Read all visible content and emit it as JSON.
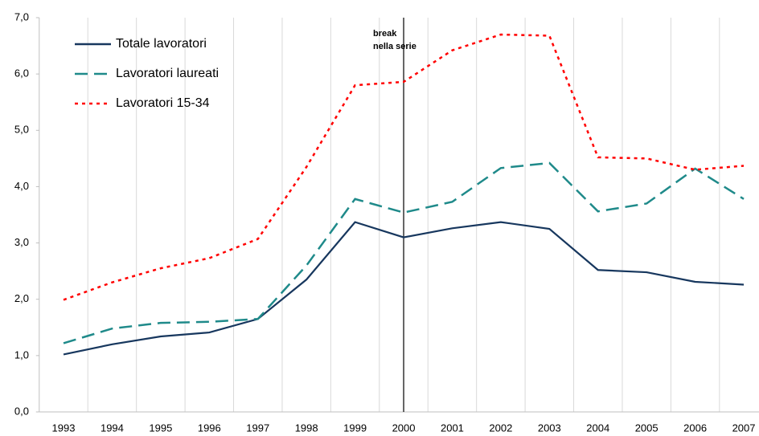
{
  "chart_data": {
    "type": "line",
    "categories": [
      "1993",
      "1994",
      "1995",
      "1996",
      "1997",
      "1998",
      "1999",
      "2000",
      "2001",
      "2002",
      "2003",
      "2004",
      "2005",
      "2006",
      "2007"
    ],
    "series": [
      {
        "name": "Totale lavoratori",
        "color": "#17375e",
        "style": "solid",
        "values": [
          1.02,
          1.2,
          1.34,
          1.41,
          1.65,
          2.35,
          3.37,
          3.1,
          3.26,
          3.37,
          3.25,
          2.52,
          2.48,
          2.31,
          2.26
        ]
      },
      {
        "name": "Lavoratori laureati",
        "color": "#1f8a8a",
        "style": "dashed",
        "values": [
          1.22,
          1.48,
          1.58,
          1.6,
          1.65,
          2.6,
          3.78,
          3.54,
          3.73,
          4.33,
          4.42,
          3.56,
          3.7,
          4.32,
          3.78
        ]
      },
      {
        "name": "Lavoratori 15-34",
        "color": "#ff0000",
        "style": "dotted",
        "values": [
          1.99,
          2.3,
          2.55,
          2.73,
          3.07,
          4.35,
          5.8,
          5.86,
          6.42,
          6.7,
          6.68,
          4.52,
          4.5,
          4.3,
          4.37
        ]
      }
    ],
    "ylim": [
      0,
      7
    ],
    "yticks": [
      {
        "value": 0,
        "label": "0,0"
      },
      {
        "value": 1,
        "label": "1,0"
      },
      {
        "value": 2,
        "label": "2,0"
      },
      {
        "value": 3,
        "label": "3,0"
      },
      {
        "value": 4,
        "label": "4,0"
      },
      {
        "value": 5,
        "label": "5,0"
      },
      {
        "value": 6,
        "label": "6,0"
      },
      {
        "value": 7,
        "label": "7,0"
      }
    ],
    "annotation": {
      "text": [
        "break",
        "nella serie"
      ],
      "x": "2000"
    },
    "legend": "top-left"
  }
}
